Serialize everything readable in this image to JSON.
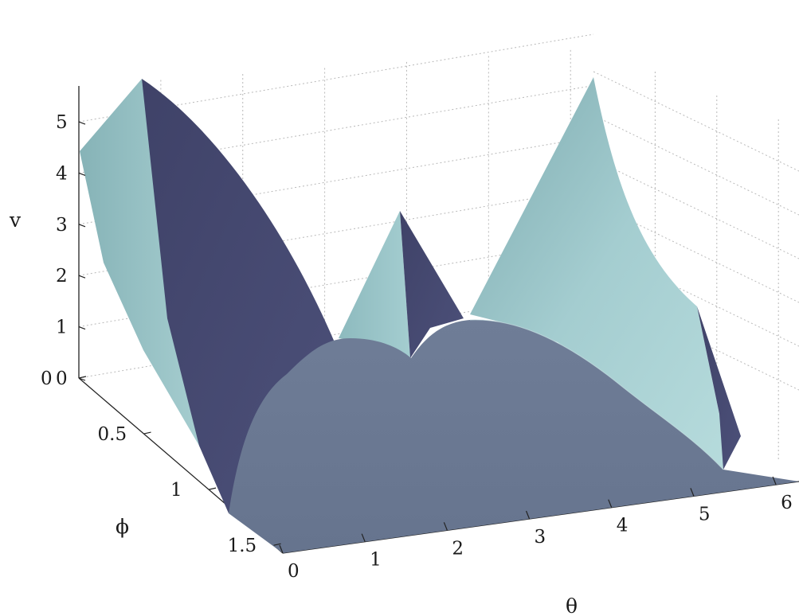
{
  "chart_data": {
    "type": "surface",
    "xlabel": "θ",
    "ylabel": "ϕ",
    "zlabel": "v",
    "x_ticks": [
      "0",
      "1",
      "2",
      "3",
      "4",
      "5",
      "6"
    ],
    "y_ticks": [
      "0",
      "0.5",
      "1",
      "1.5"
    ],
    "z_ticks": [
      "0",
      "1",
      "2",
      "3",
      "4",
      "5"
    ],
    "xlim": [
      0,
      6.28
    ],
    "ylim": [
      0,
      1.57
    ],
    "zlim": [
      0,
      5.7
    ],
    "grid": true,
    "peaks": [
      {
        "theta": 0.0,
        "phi": 0.0,
        "v": 5.6
      },
      {
        "theta": 2.1,
        "phi": 0.0,
        "v": 2.9
      },
      {
        "theta": 4.2,
        "phi": 0.0,
        "v": 5.6
      }
    ],
    "colors": {
      "face_light": "#96c3c6",
      "face_dark": "#474a72",
      "floor": "#6b7993",
      "grid": "#b9b9b9"
    }
  }
}
